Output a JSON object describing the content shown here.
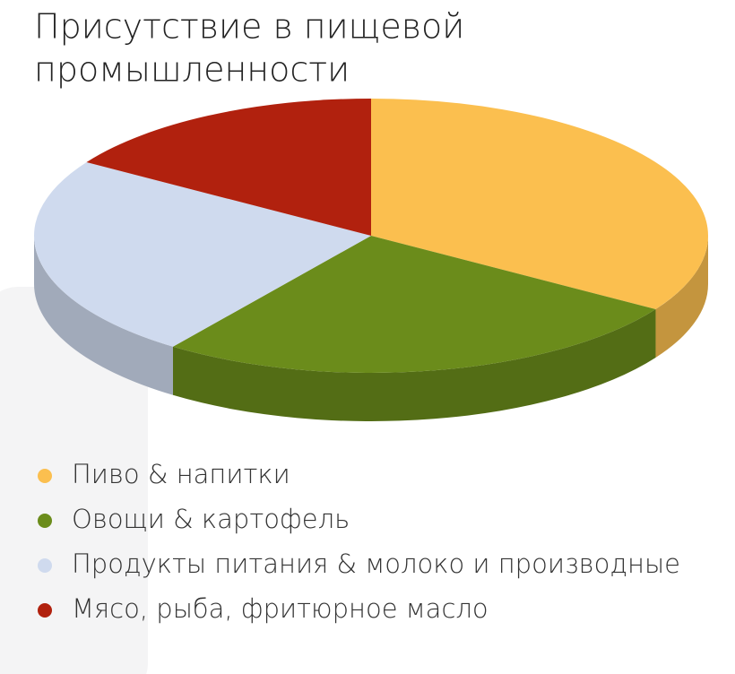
{
  "chart_data": {
    "type": "pie",
    "title": [
      "Присутствие в пищевой",
      "промышленности"
    ],
    "categories": [
      "Пиво & напитки",
      "Овощи & картофель",
      "Продукты питания & молоко и производные",
      "Мясо, рыба, фритюрное масло"
    ],
    "values": [
      34,
      26,
      24,
      16
    ],
    "colors": [
      "#fbbf4f",
      "#6b8c1b",
      "#cfdaee",
      "#b1210e"
    ]
  }
}
